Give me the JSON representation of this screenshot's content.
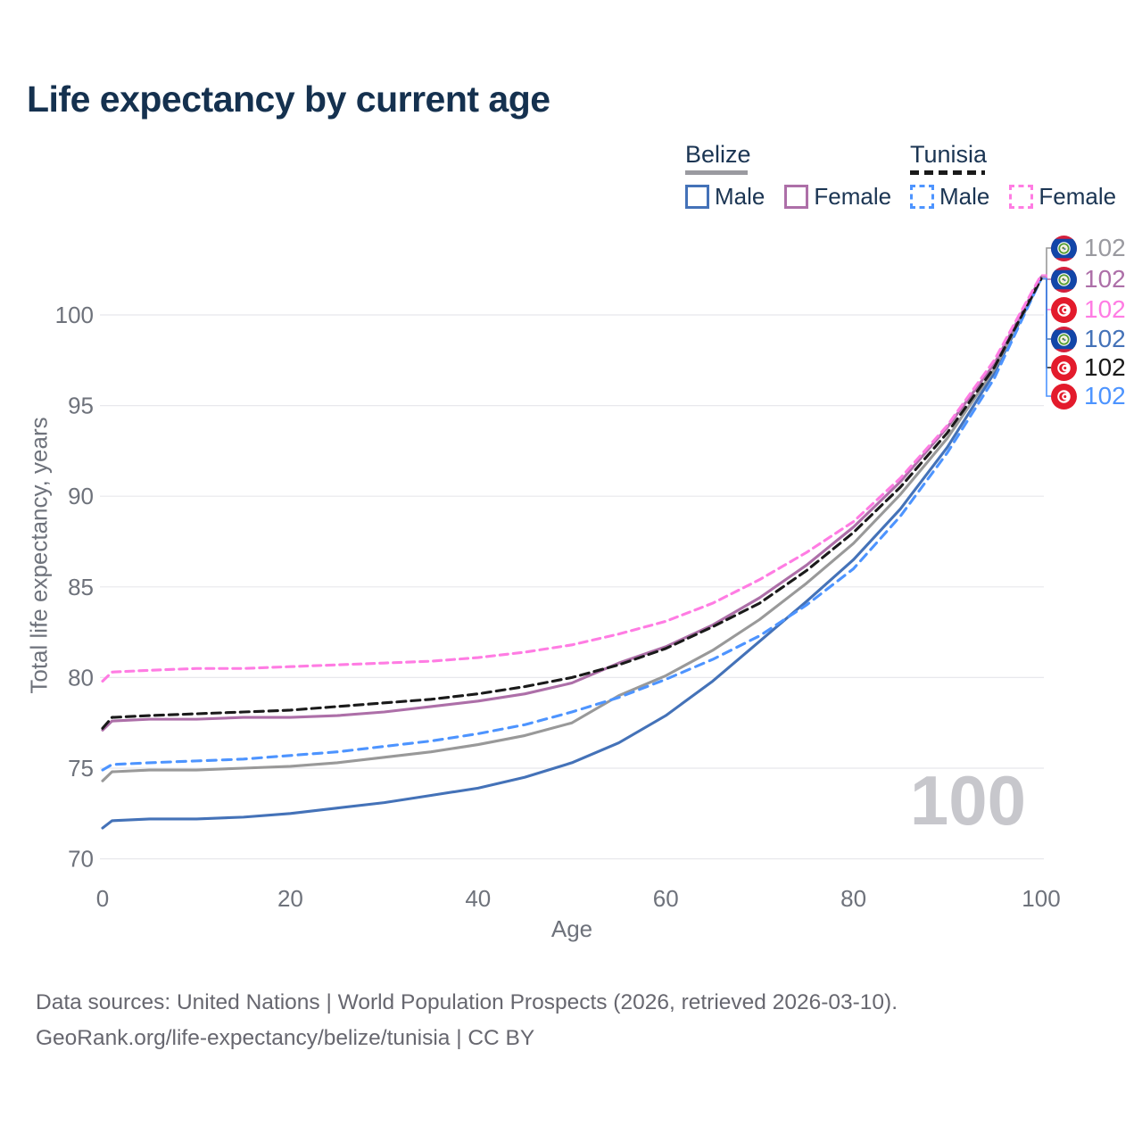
{
  "header": {
    "title": "Life expectancy by current age"
  },
  "legend": {
    "groups": [
      {
        "country": "Belize",
        "line_style": "solid",
        "underline_color": "#9a9aa0",
        "items": [
          {
            "label": "Male",
            "color": "#4472b8",
            "dashed": false
          },
          {
            "label": "Female",
            "color": "#ad6fa8",
            "dashed": false
          }
        ]
      },
      {
        "country": "Tunisia",
        "line_style": "dashed",
        "underline_color": "#1a1a1a",
        "items": [
          {
            "label": "Male",
            "color": "#4d94ff",
            "dashed": true
          },
          {
            "label": "Female",
            "color": "#ff7ce3",
            "dashed": true
          }
        ]
      }
    ]
  },
  "chart_data": {
    "type": "line",
    "title": "Life expectancy by current age",
    "xlabel": "Age",
    "ylabel": "Total life expectancy, years",
    "xlim": [
      0,
      100
    ],
    "ylim": [
      69,
      103.5
    ],
    "x_ticks": [
      0,
      20,
      40,
      60,
      80,
      100
    ],
    "y_ticks": [
      70,
      75,
      80,
      85,
      90,
      95,
      100
    ],
    "grid": "horizontal",
    "legend_position": "top-right",
    "x": [
      0,
      1,
      5,
      10,
      15,
      20,
      25,
      30,
      35,
      40,
      45,
      50,
      55,
      60,
      65,
      70,
      75,
      80,
      85,
      90,
      95,
      100
    ],
    "series": [
      {
        "name": "Belize Male",
        "color": "#4472b8",
        "dash": null,
        "values": [
          71.7,
          72.1,
          72.2,
          72.2,
          72.3,
          72.5,
          72.8,
          73.1,
          73.5,
          73.9,
          74.5,
          75.3,
          76.4,
          77.9,
          79.8,
          82.0,
          84.2,
          86.5,
          89.3,
          92.7,
          96.8,
          102.0
        ]
      },
      {
        "name": "Belize Both sexes",
        "color": "#999999",
        "dash": null,
        "values": [
          74.3,
          74.8,
          74.9,
          74.9,
          75.0,
          75.1,
          75.3,
          75.6,
          75.9,
          76.3,
          76.8,
          77.5,
          79.0,
          80.1,
          81.5,
          83.2,
          85.2,
          87.4,
          90.1,
          93.2,
          97.0,
          102.0
        ]
      },
      {
        "name": "Belize Female",
        "color": "#ad6fa8",
        "dash": null,
        "values": [
          77.1,
          77.6,
          77.7,
          77.7,
          77.8,
          77.8,
          77.9,
          78.1,
          78.4,
          78.7,
          79.1,
          79.7,
          80.8,
          81.7,
          82.9,
          84.4,
          86.2,
          88.3,
          90.8,
          93.8,
          97.3,
          102.1
        ]
      },
      {
        "name": "Tunisia Male",
        "color": "#4d94ff",
        "dash": "10 7",
        "values": [
          74.9,
          75.2,
          75.3,
          75.4,
          75.5,
          75.7,
          75.9,
          76.2,
          76.5,
          76.9,
          77.4,
          78.1,
          78.9,
          79.9,
          81.0,
          82.3,
          84.0,
          86.0,
          88.9,
          92.4,
          96.5,
          102.0
        ]
      },
      {
        "name": "Tunisia Both sexes",
        "color": "#1a1a1a",
        "dash": "10 6",
        "values": [
          77.2,
          77.8,
          77.9,
          78.0,
          78.1,
          78.2,
          78.4,
          78.6,
          78.8,
          79.1,
          79.5,
          80.0,
          80.7,
          81.6,
          82.8,
          84.1,
          85.9,
          88.0,
          90.5,
          93.5,
          97.1,
          102.0
        ]
      },
      {
        "name": "Tunisia Female",
        "color": "#ff7ce3",
        "dash": "9 6",
        "values": [
          79.8,
          80.3,
          80.4,
          80.5,
          80.5,
          80.6,
          80.7,
          80.8,
          80.9,
          81.1,
          81.4,
          81.8,
          82.4,
          83.1,
          84.1,
          85.4,
          86.9,
          88.6,
          91.0,
          93.9,
          97.5,
          102.2
        ]
      }
    ]
  },
  "end_labels": [
    {
      "country": "belize",
      "flag": "Belize flag",
      "value": "102",
      "color": "#9a9aa0",
      "series_index": 1
    },
    {
      "country": "belize",
      "flag": "Belize flag",
      "value": "102",
      "color": "#ad6fa8",
      "series_index": 2
    },
    {
      "country": "tunisia",
      "flag": "Tunisia flag",
      "value": "102",
      "color": "#ff7ce3",
      "series_index": 5
    },
    {
      "country": "belize",
      "flag": "Belize flag",
      "value": "102",
      "color": "#4472b8",
      "series_index": 0
    },
    {
      "country": "tunisia",
      "flag": "Tunisia flag",
      "value": "102",
      "color": "#1a1a1a",
      "series_index": 4
    },
    {
      "country": "tunisia",
      "flag": "Tunisia flag",
      "value": "102",
      "color": "#4d94ff",
      "series_index": 3
    }
  ],
  "watermark": "100",
  "footer": {
    "line1": "Data sources: United Nations | World Population Prospects (2026, retrieved 2026-03-10).",
    "line2": "GeoRank.org/life-expectancy/belize/tunisia | CC BY"
  }
}
